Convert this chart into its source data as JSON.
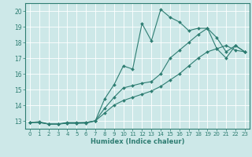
{
  "xlabel": "Humidex (Indice chaleur)",
  "background_color": "#cde8e8",
  "grid_color": "#ffffff",
  "line_color": "#2e7d72",
  "xlim": [
    -0.5,
    23.5
  ],
  "ylim": [
    12.5,
    20.5
  ],
  "x_ticks": [
    0,
    1,
    2,
    3,
    4,
    5,
    6,
    7,
    8,
    9,
    10,
    11,
    12,
    13,
    14,
    15,
    16,
    17,
    18,
    19,
    20,
    21,
    22,
    23
  ],
  "y_ticks": [
    13,
    14,
    15,
    16,
    17,
    18,
    19,
    20
  ],
  "curve1_x": [
    0,
    1,
    2,
    3,
    4,
    5,
    6,
    7,
    8,
    9,
    10,
    11,
    12,
    13,
    14,
    15,
    16,
    17,
    18,
    19,
    20,
    21,
    22,
    23
  ],
  "curve1_y": [
    12.9,
    12.95,
    12.8,
    12.8,
    12.9,
    12.9,
    12.9,
    13.0,
    14.4,
    15.3,
    16.5,
    16.3,
    19.2,
    18.1,
    20.1,
    19.6,
    19.3,
    18.75,
    18.9,
    18.9,
    17.6,
    17.8,
    17.5,
    17.4
  ],
  "curve2_x": [
    0,
    1,
    2,
    3,
    4,
    5,
    6,
    7,
    8,
    9,
    10,
    11,
    12,
    13,
    14,
    15,
    16,
    17,
    18,
    19,
    20,
    21,
    22,
    23
  ],
  "curve2_y": [
    12.9,
    12.9,
    12.8,
    12.8,
    12.85,
    12.85,
    12.9,
    13.0,
    13.8,
    14.5,
    15.1,
    15.25,
    15.4,
    15.5,
    16.0,
    17.0,
    17.5,
    18.0,
    18.5,
    18.9,
    18.3,
    17.4,
    17.8,
    17.4
  ],
  "curve3_x": [
    0,
    1,
    2,
    3,
    4,
    5,
    6,
    7,
    8,
    9,
    10,
    11,
    12,
    13,
    14,
    15,
    16,
    17,
    18,
    19,
    20,
    21,
    22,
    23
  ],
  "curve3_y": [
    12.9,
    12.9,
    12.8,
    12.8,
    12.85,
    12.85,
    12.85,
    13.0,
    13.5,
    14.0,
    14.3,
    14.5,
    14.7,
    14.9,
    15.2,
    15.6,
    16.0,
    16.5,
    17.0,
    17.4,
    17.6,
    17.0,
    17.8,
    17.4
  ]
}
